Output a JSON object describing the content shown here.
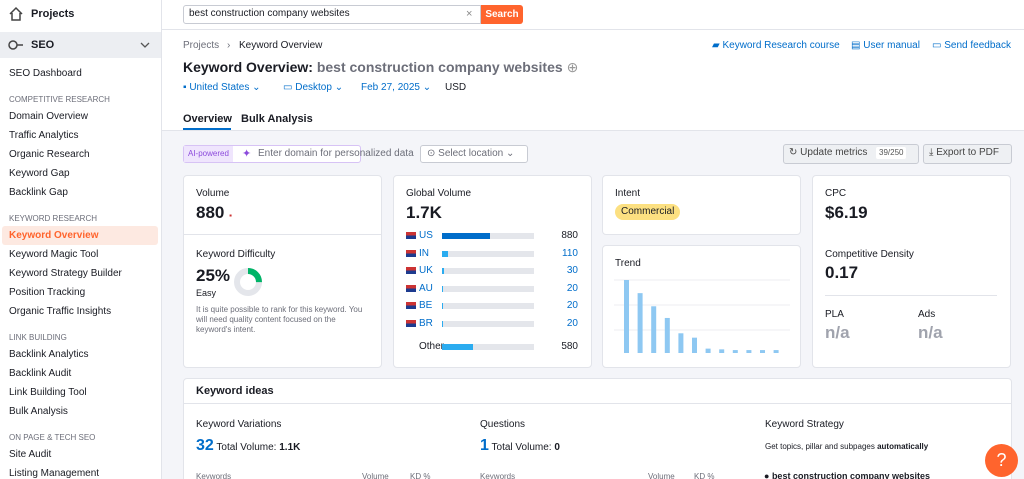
{
  "sidebar": {
    "projects": "Projects",
    "section": "SEO",
    "dashboard": "SEO Dashboard",
    "groups": [
      {
        "title": "COMPETITIVE RESEARCH",
        "items": [
          "Domain Overview",
          "Traffic Analytics",
          "Organic Research",
          "Keyword Gap",
          "Backlink Gap"
        ]
      },
      {
        "title": "KEYWORD RESEARCH",
        "items": [
          "Keyword Overview",
          "Keyword Magic Tool",
          "Keyword Strategy Builder",
          "Position Tracking",
          "Organic Traffic Insights"
        ]
      },
      {
        "title": "LINK BUILDING",
        "items": [
          "Backlink Analytics",
          "Backlink Audit",
          "Link Building Tool",
          "Bulk Analysis"
        ]
      },
      {
        "title": "ON PAGE & TECH SEO",
        "items": [
          "Site Audit",
          "Listing Management"
        ]
      }
    ],
    "active": "Keyword Overview"
  },
  "search": {
    "query": "best construction company websites",
    "button": "Search"
  },
  "breadcrumb": [
    "Projects",
    "Keyword Overview"
  ],
  "help_links": [
    "Keyword Research course",
    "User manual",
    "Send feedback"
  ],
  "header": {
    "title": "Keyword Overview:",
    "keyword": "best construction company websites"
  },
  "filters": [
    "United States",
    "Desktop",
    "Feb 27, 2025",
    "USD"
  ],
  "tabs": [
    "Overview",
    "Bulk Analysis"
  ],
  "toolbar": {
    "ai_badge": "AI-powered",
    "domain_placeholder": "Enter domain for personalized data",
    "location": "Select location",
    "update": "Update metrics",
    "quota": "39/250",
    "export": "Export to PDF"
  },
  "volume": {
    "label": "Volume",
    "value": 880
  },
  "keyword_difficulty": {
    "label": "Keyword Difficulty",
    "value": 25,
    "value_label": "25%",
    "level": "Easy",
    "note": "It is quite possible to rank for this keyword. You will need quality content focused on the keyword's intent."
  },
  "global_volume": {
    "label": "Global Volume",
    "value": {
      "value": 1700,
      "label": "1.7K"
    },
    "countries": [
      {
        "code": "US",
        "value": 880
      },
      {
        "code": "IN",
        "value": 110
      },
      {
        "code": "UK",
        "value": 30
      },
      {
        "code": "AU",
        "value": 20
      },
      {
        "code": "BE",
        "value": 20
      },
      {
        "code": "BR",
        "value": 20
      }
    ],
    "other": {
      "name": "Other",
      "value": 580
    }
  },
  "intent": {
    "label": "Intent",
    "value": "Commercial"
  },
  "trend": {
    "label": "Trend",
    "values": [
      1.0,
      0.82,
      0.64,
      0.48,
      0.27,
      0.21,
      0.06,
      0.05,
      0.04,
      0.04,
      0.04,
      0.04
    ]
  },
  "cpc": {
    "label": "CPC",
    "value": "$6.19"
  },
  "competitive_density": {
    "label": "Competitive Density",
    "value": "0.17"
  },
  "pla": {
    "label": "PLA",
    "value": "n/a"
  },
  "ads": {
    "label": "Ads",
    "value": "n/a"
  },
  "keyword_ideas": {
    "title": "Keyword ideas",
    "variations": {
      "label": "Keyword Variations",
      "count": "32",
      "total_label": "Total Volume:",
      "total": "1.1K"
    },
    "questions": {
      "label": "Questions",
      "count": "1",
      "total_label": "Total Volume:",
      "total": "0"
    },
    "strategy": {
      "label": "Keyword Strategy",
      "text": "Get topics, pillar and subpages",
      "emphasis": "automatically",
      "seed": "best construction company websites"
    },
    "columns": [
      "Keywords",
      "Volume",
      "KD %"
    ]
  },
  "help_button": "?"
}
